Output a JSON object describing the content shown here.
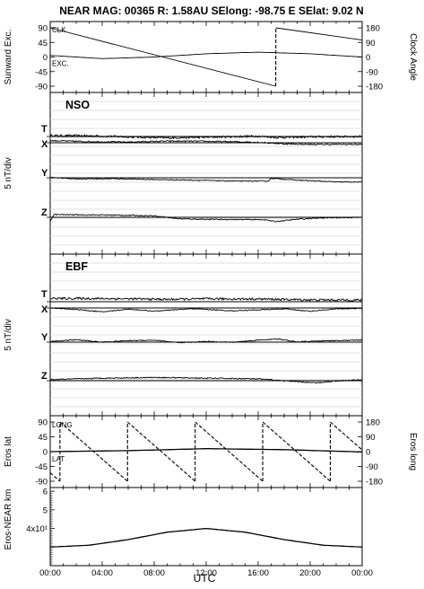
{
  "chart_data": {
    "type": "line",
    "title": "NEAR MAG: 00365  R: 1.58AU  SElong:  -98.75 E  SElat:    9.02 N",
    "xlabel": "UTC",
    "x_ticks": [
      "00:00",
      "04:00",
      "08:00",
      "12:00",
      "16:00",
      "20:00",
      "00:00"
    ],
    "x_range_hours": [
      0,
      24
    ],
    "panels": [
      {
        "id": "angles",
        "ylabel_left": "Sunward Exc.",
        "ylabel_right": "Clock Angle",
        "left_ticks": [
          "90",
          "45",
          "0",
          "-45",
          "-90"
        ],
        "right_ticks": [
          "180",
          "90",
          "0",
          "-90",
          "-180"
        ],
        "ylim_left": [
          -90,
          90
        ],
        "ylim_right": [
          -180,
          180
        ],
        "series_labels": [
          "CLK",
          "EXC."
        ],
        "clock_angle": {
          "x": [
            0,
            17.35,
            17.36,
            24
          ],
          "y": [
            180,
            -180,
            180,
            105
          ]
        },
        "sunward_exc": {
          "x": [
            0,
            4,
            8,
            12,
            16,
            20,
            24
          ],
          "y": [
            5,
            -5,
            0,
            10,
            15,
            10,
            0
          ]
        }
      },
      {
        "id": "nso",
        "label": "NSO",
        "ylabel_left": "5 nT/div",
        "grid": true,
        "traces": [
          {
            "name": "T",
            "x": [
              0,
              3,
              6,
              9,
              12,
              16,
              17.5,
              20,
              24
            ],
            "offset_nT": [
              0.5,
              0.4,
              -0.2,
              -0.8,
              -0.4,
              0.2,
              -0.6,
              -0.2,
              0
            ],
            "noise": 1.1
          },
          {
            "name": "X",
            "x": [
              0,
              3,
              6,
              9,
              12,
              16,
              18,
              20,
              24
            ],
            "offset_nT": [
              1.2,
              0.6,
              0.4,
              0.9,
              0.8,
              0.3,
              -0.6,
              -0.9,
              -0.9
            ],
            "noise": 0.7
          },
          {
            "name": "Y",
            "x": [
              0,
              2,
              5,
              8,
              11,
              14,
              16.8,
              17,
              19,
              22,
              24
            ],
            "offset_nT": [
              0.2,
              -0.6,
              -0.5,
              -1,
              -1.3,
              -1.8,
              -1.8,
              -0.3,
              -1.3,
              -2.3,
              -2.4
            ],
            "noise": 0.5
          },
          {
            "name": "Z",
            "x": [
              0,
              0.3,
              5,
              8,
              10,
              13,
              16.5,
              17.3,
              19,
              21,
              24
            ],
            "offset_nT": [
              -2,
              1.5,
              1.2,
              0.8,
              -0.9,
              -1.2,
              -1.3,
              -2.4,
              -1.1,
              -0.3,
              0
            ],
            "noise": 0.6
          }
        ]
      },
      {
        "id": "ebf",
        "label": "EBF",
        "ylabel_left": "5 nT/div",
        "grid": true,
        "traces": [
          {
            "name": "T",
            "x": [
              0,
              3,
              6,
              9,
              12,
              16,
              20,
              24
            ],
            "offset_nT": [
              1.8,
              1.8,
              1.6,
              1.3,
              1.6,
              1.5,
              1,
              0.9
            ],
            "noise": 1.2
          },
          {
            "name": "X",
            "x": [
              0,
              2,
              4,
              6,
              8,
              11,
              14,
              18,
              20,
              22,
              24
            ],
            "offset_nT": [
              0,
              -0.8,
              -2.2,
              -0.6,
              -1.8,
              -0.4,
              -1.6,
              -0.5,
              -1.8,
              -0.5,
              -0.2
            ],
            "noise": 0.5
          },
          {
            "name": "Y",
            "x": [
              0,
              2,
              4,
              6,
              8,
              10,
              12,
              14,
              16,
              17.5,
              19,
              21,
              24
            ],
            "offset_nT": [
              0.3,
              1.3,
              0,
              0.8,
              1.1,
              -0.4,
              0.4,
              -0.1,
              1.1,
              1.7,
              0.1,
              0.7,
              1.1
            ],
            "noise": 0.5
          },
          {
            "name": "Z",
            "x": [
              0,
              4,
              8,
              12,
              16,
              19,
              20.5,
              22,
              24
            ],
            "offset_nT": [
              0.6,
              1.4,
              1.8,
              1.4,
              1,
              -0.6,
              -1.2,
              -0.1,
              0.5
            ],
            "noise": 0.6
          }
        ]
      },
      {
        "id": "eros_pos",
        "ylabel_left": "Eros lat",
        "ylabel_right": "Eros long",
        "left_ticks": [
          "90",
          "45",
          "0",
          "-45",
          "-90"
        ],
        "right_ticks": [
          "180",
          "90",
          "0",
          "-90",
          "-180"
        ],
        "ylim_left": [
          -90,
          90
        ],
        "ylim_right": [
          -180,
          180
        ],
        "series_labels": [
          "LONG",
          "LAT"
        ],
        "long_wrap_hours": [
          0.75,
          5.95,
          11.15,
          16.35,
          21.55
        ],
        "long_period_hours": 5.2,
        "lat": {
          "x": [
            0,
            6,
            12,
            18,
            24
          ],
          "y": [
            0,
            3,
            9,
            6,
            -1
          ]
        }
      },
      {
        "id": "range",
        "ylabel_left": "Eros-NEAR km",
        "left_ticks": [
          "6",
          "5",
          "4x10¹",
          "3",
          "2"
        ],
        "ylim": [
          20,
          62
        ],
        "range": {
          "x": [
            0,
            3,
            6,
            9,
            12,
            15,
            18,
            21,
            24
          ],
          "y": [
            30,
            31,
            34,
            38,
            40,
            38,
            34,
            31,
            30
          ]
        }
      }
    ]
  }
}
